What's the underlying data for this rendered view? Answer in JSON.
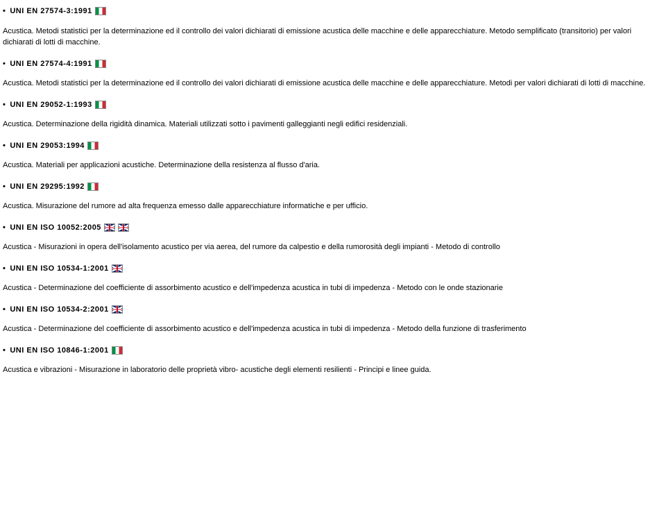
{
  "entries": [
    {
      "code": "UNI EN 27574-3:1991",
      "flags": [
        "it"
      ],
      "lines": [
        " Acustica. Metodi statistici per la determinazione ed il controllo dei valori dichiarati di emissione acustica delle macchine e delle apparecchiature. Metodo semplificato (transitorio) per valori dichiarati di lotti di macchine."
      ]
    },
    {
      "code": "UNI EN 27574-4:1991",
      "flags": [
        "it"
      ],
      "lines": [
        "Acustica. Metodi statistici per la determinazione ed il controllo dei valori dichiarati di emissione acustica delle macchine e delle apparecchiature. Metodi per valori dichiarati di lotti di macchine."
      ]
    },
    {
      "code": "UNI EN 29052-1:1993",
      "flags": [
        "it"
      ],
      "lines": [
        "Acustica. Determinazione della rigidità dinamica. Materiali utilizzati sotto i pavimenti galleggianti negli edifici residenziali."
      ]
    },
    {
      "code": "UNI EN 29053:1994",
      "flags": [
        "it"
      ],
      "lines": [
        "Acustica. Materiali per applicazioni acustiche. Determinazione della resistenza al flusso d'aria."
      ]
    },
    {
      "code": "UNI EN 29295:1992",
      "flags": [
        "it"
      ],
      "lines": [
        "Acustica. Misurazione del rumore ad alta frequenza emesso dalle apparecchiature informatiche e per ufficio."
      ]
    },
    {
      "code": "UNI EN ISO 10052:2005",
      "flags": [
        "uk",
        "uk"
      ],
      "lines": [
        "Acustica - Misurazioni in opera dell'isolamento acustico per via aerea, del rumore da calpestio e della rumorosità degli impianti - Metodo di controllo"
      ]
    },
    {
      "code": "UNI EN ISO 10534-1:2001",
      "flags": [
        "uk"
      ],
      "lines": [
        "Acustica - Determinazione del coefficiente di assorbimento acustico e dell'impedenza acustica in tubi di impedenza - Metodo con le onde stazionarie"
      ]
    },
    {
      "code": "UNI EN ISO 10534-2:2001",
      "flags": [
        "uk"
      ],
      "lines": [
        "Acustica - Determinazione del coefficiente di assorbimento acustico e dell'impedenza acustica in tubi di impedenza - Metodo della funzione di trasferimento"
      ]
    },
    {
      "code": "UNI EN ISO 10846-1:2001",
      "flags": [
        "it"
      ],
      "lines": [
        "Acustica e vibrazioni - Misurazione in laboratorio delle proprietà vibro- acustiche degli elementi resilienti - Principi e linee guida."
      ]
    }
  ]
}
